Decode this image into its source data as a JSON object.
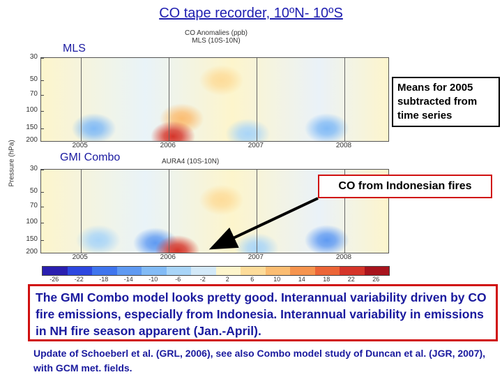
{
  "slide_title": "CO tape recorder, 10ºN- 10ºS",
  "panels": {
    "top_label": "MLS",
    "top_small_title_1": "CO Anomalies (ppb)",
    "top_small_title_2": "MLS (10S-10N)",
    "bottom_label": "GMI Combo",
    "bottom_small_title": "AURA4 (10S-10N)"
  },
  "callouts": {
    "means": "Means for 2005 subtracted from time series",
    "fires": "CO from Indonesian fires"
  },
  "summary": "The GMI Combo model looks pretty good.  Interannual variability driven by CO fire emissions, especially from Indonesia.  Interannual variability in emissions in NH fire season apparent (Jan.-April).",
  "footnote": "Update of Schoeberl et al. (GRL, 2006), see also Combo model study of Duncan et al. (JGR, 2007), with GCM met. fields.",
  "colors": {
    "title": "#1f1fb0",
    "summary_text": "#1a1a9e",
    "callout_border_red": "#d01010",
    "arrow": "#000000"
  },
  "chart_data": [
    {
      "type": "heatmap",
      "title": "CO Anomalies (ppb) MLS (10S-10N)",
      "ylabel": "Pressure (hPa)",
      "y_scale": "log",
      "y_ticks": [
        30,
        50,
        70,
        100,
        150,
        200
      ],
      "ylim": [
        200,
        30
      ],
      "x_ticks": [
        "2005",
        "2006",
        "2007",
        "2008"
      ],
      "xlim": [
        2004.55,
        2008.5
      ],
      "features": [
        {
          "x": 2006.05,
          "p": 180,
          "value": 22
        },
        {
          "x": 2006.15,
          "p": 120,
          "value": 8
        },
        {
          "x": 2005.15,
          "p": 150,
          "value": -10
        },
        {
          "x": 2006.9,
          "p": 170,
          "value": -8
        },
        {
          "x": 2007.8,
          "p": 150,
          "value": -12
        },
        {
          "x": 2006.6,
          "p": 50,
          "value": 4
        }
      ]
    },
    {
      "type": "heatmap",
      "title": "AURA4 (10S-10N)",
      "ylabel": "Pressure (hPa)",
      "y_scale": "log",
      "y_ticks": [
        30,
        50,
        70,
        100,
        150,
        200
      ],
      "ylim": [
        200,
        30
      ],
      "x_ticks": [
        "2005",
        "2006",
        "2007",
        "2008"
      ],
      "xlim": [
        2004.55,
        2008.5
      ],
      "features": [
        {
          "x": 2006.1,
          "p": 190,
          "value": 22
        },
        {
          "x": 2005.85,
          "p": 160,
          "value": -14
        },
        {
          "x": 2005.2,
          "p": 150,
          "value": -8
        },
        {
          "x": 2007.0,
          "p": 180,
          "value": -6
        },
        {
          "x": 2007.8,
          "p": 150,
          "value": -14
        },
        {
          "x": 2006.6,
          "p": 60,
          "value": 4
        }
      ]
    }
  ],
  "colorbar": {
    "ticks": [
      "-26",
      "-22",
      "-18",
      "-14",
      "-10",
      "-6",
      "-2",
      "2",
      "6",
      "10",
      "14",
      "18",
      "22",
      "26"
    ],
    "colors": [
      "#2a1fb0",
      "#2d48e0",
      "#3f75ee",
      "#5f9af2",
      "#82bbf6",
      "#a9d5f8",
      "#d3e9f8",
      "#fdf5cc",
      "#fddc9a",
      "#fbbd72",
      "#f6944e",
      "#ec6537",
      "#d5352a",
      "#a8141d"
    ]
  }
}
